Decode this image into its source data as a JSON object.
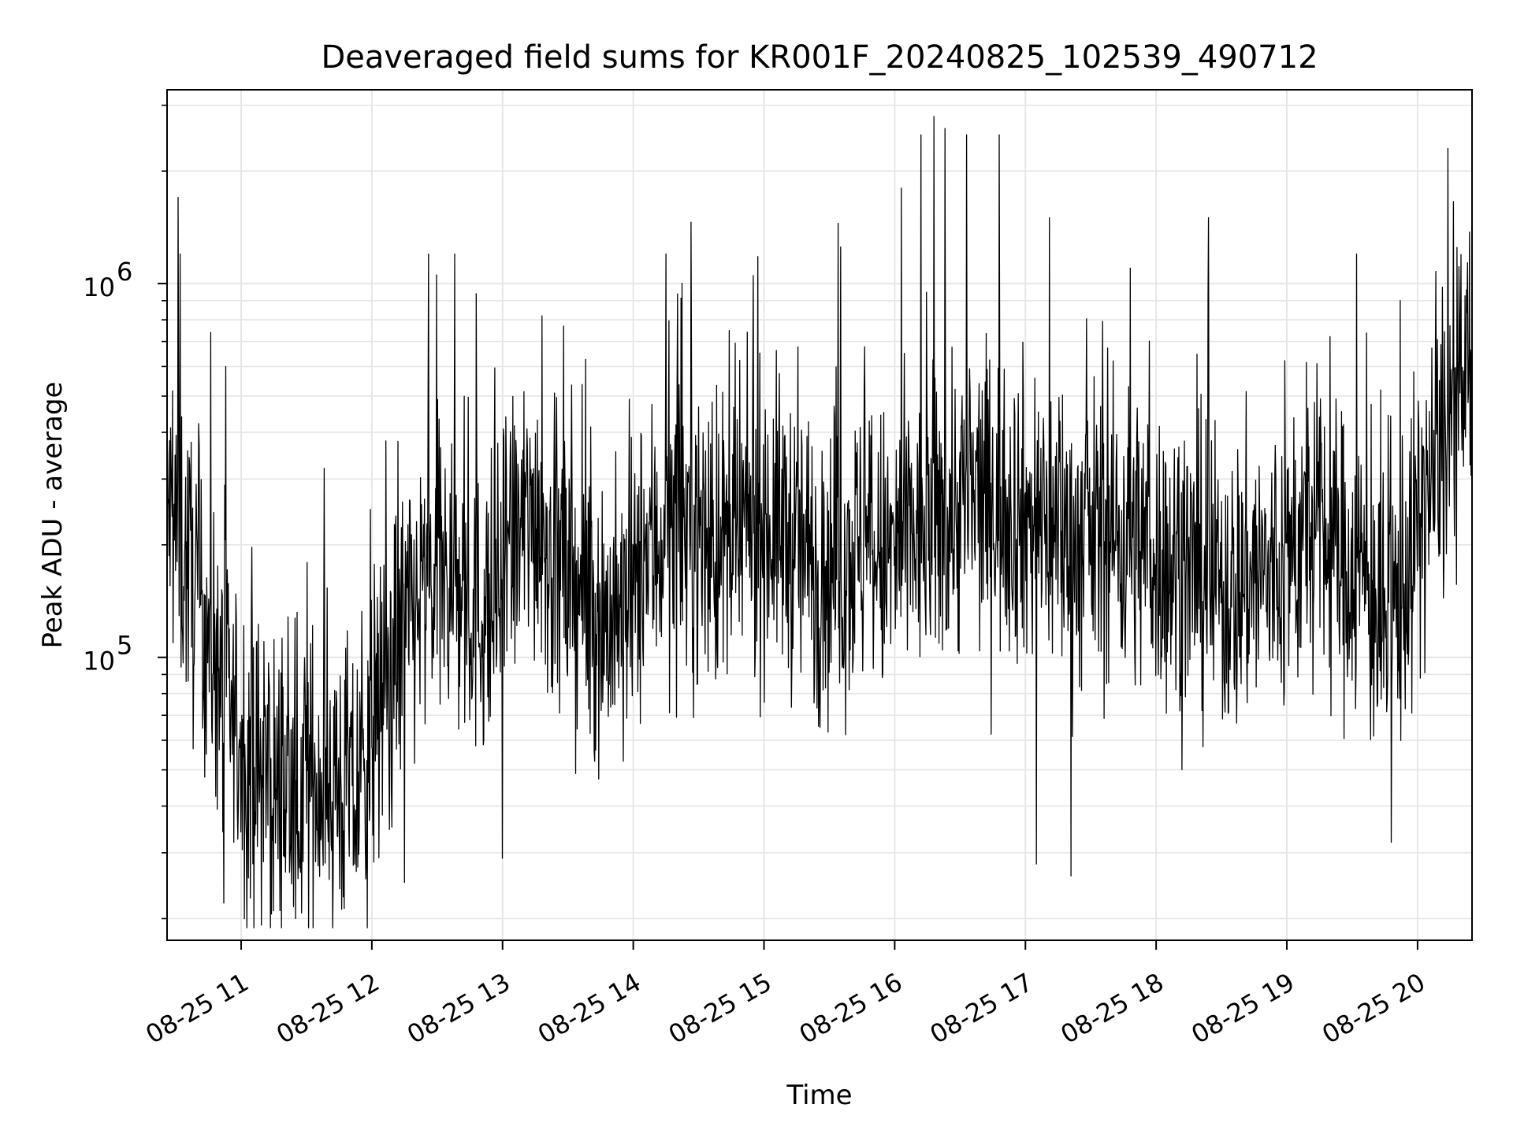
{
  "chart_data": {
    "type": "line",
    "title": "Deaveraged field sums for KR001F_20240825_102539_490712",
    "xlabel": "Time",
    "ylabel": "Peak ADU - average",
    "yscale": "log",
    "ylim": [
      17500,
      3300000
    ],
    "xlim": [
      "2024-08-25 10:26",
      "2024-08-25 20:25"
    ],
    "grid": true,
    "line_color": "#000000",
    "grid_color": "#e6e6e6",
    "x_ticks": [
      {
        "time": "2024-08-25 11:00",
        "label": "08-25 11"
      },
      {
        "time": "2024-08-25 12:00",
        "label": "08-25 12"
      },
      {
        "time": "2024-08-25 13:00",
        "label": "08-25 13"
      },
      {
        "time": "2024-08-25 14:00",
        "label": "08-25 14"
      },
      {
        "time": "2024-08-25 15:00",
        "label": "08-25 15"
      },
      {
        "time": "2024-08-25 16:00",
        "label": "08-25 16"
      },
      {
        "time": "2024-08-25 17:00",
        "label": "08-25 17"
      },
      {
        "time": "2024-08-25 18:00",
        "label": "08-25 18"
      },
      {
        "time": "2024-08-25 19:00",
        "label": "08-25 19"
      },
      {
        "time": "2024-08-25 20:00",
        "label": "08-25 20"
      }
    ],
    "y_major_ticks": [
      {
        "value": 100000,
        "base": "10",
        "exp": "5"
      },
      {
        "value": 1000000,
        "base": "10",
        "exp": "6"
      }
    ],
    "series": [
      {
        "x": [
          "10:26",
          "10:35",
          "10:45",
          "10:55",
          "11:05",
          "11:15",
          "11:25",
          "11:35",
          "11:45",
          "11:55",
          "12:05",
          "12:15",
          "12:25",
          "12:35",
          "12:45",
          "12:55",
          "13:05",
          "13:15",
          "13:25",
          "13:35",
          "13:45",
          "13:55",
          "14:05",
          "14:15",
          "14:25",
          "14:35",
          "14:45",
          "14:55",
          "15:05",
          "15:15",
          "15:25",
          "15:35",
          "15:45",
          "15:55",
          "16:05",
          "16:15",
          "16:25",
          "16:35",
          "16:45",
          "16:55",
          "17:05",
          "17:15",
          "17:25",
          "17:35",
          "17:45",
          "17:55",
          "18:05",
          "18:15",
          "18:25",
          "18:35",
          "18:45",
          "18:55",
          "19:05",
          "19:15",
          "19:25",
          "19:35",
          "19:45",
          "19:55",
          "20:05",
          "20:15",
          "20:25"
        ],
        "y": [
          250000,
          180000,
          120000,
          70000,
          50000,
          45000,
          42000,
          48000,
          45000,
          42000,
          80000,
          120000,
          150000,
          160000,
          140000,
          130000,
          200000,
          250000,
          170000,
          150000,
          130000,
          120000,
          180000,
          220000,
          230000,
          200000,
          190000,
          230000,
          230000,
          200000,
          170000,
          180000,
          200000,
          180000,
          200000,
          220000,
          250000,
          260000,
          270000,
          250000,
          230000,
          220000,
          200000,
          220000,
          210000,
          200000,
          180000,
          170000,
          160000,
          150000,
          170000,
          160000,
          200000,
          220000,
          180000,
          170000,
          110000,
          170000,
          280000,
          400000,
          600000
        ],
        "peaks": [
          {
            "x": "10:31",
            "y": 1700000
          },
          {
            "x": "10:32",
            "y": 1200000
          },
          {
            "x": "10:46",
            "y": 740000
          },
          {
            "x": "10:53",
            "y": 600000
          },
          {
            "x": "12:26",
            "y": 1200000
          },
          {
            "x": "12:38",
            "y": 1200000
          },
          {
            "x": "12:48",
            "y": 940000
          },
          {
            "x": "13:18",
            "y": 820000
          },
          {
            "x": "14:15",
            "y": 1200000
          },
          {
            "x": "14:55",
            "y": 1050000
          },
          {
            "x": "15:34",
            "y": 1450000
          },
          {
            "x": "16:03",
            "y": 1800000
          },
          {
            "x": "16:12",
            "y": 2500000
          },
          {
            "x": "16:18",
            "y": 2800000
          },
          {
            "x": "16:23",
            "y": 2600000
          },
          {
            "x": "16:33",
            "y": 2500000
          },
          {
            "x": "16:48",
            "y": 2500000
          },
          {
            "x": "17:11",
            "y": 1500000
          },
          {
            "x": "17:48",
            "y": 1100000
          },
          {
            "x": "18:24",
            "y": 1500000
          },
          {
            "x": "19:32",
            "y": 1200000
          },
          {
            "x": "19:52",
            "y": 900000
          },
          {
            "x": "20:14",
            "y": 2300000
          }
        ],
        "dips": [
          {
            "x": "10:52",
            "y": 22000
          },
          {
            "x": "11:25",
            "y": 20000
          },
          {
            "x": "12:15",
            "y": 25000
          },
          {
            "x": "13:00",
            "y": 29000
          },
          {
            "x": "17:05",
            "y": 28000
          },
          {
            "x": "17:21",
            "y": 26000
          },
          {
            "x": "19:48",
            "y": 32000
          }
        ]
      }
    ]
  }
}
